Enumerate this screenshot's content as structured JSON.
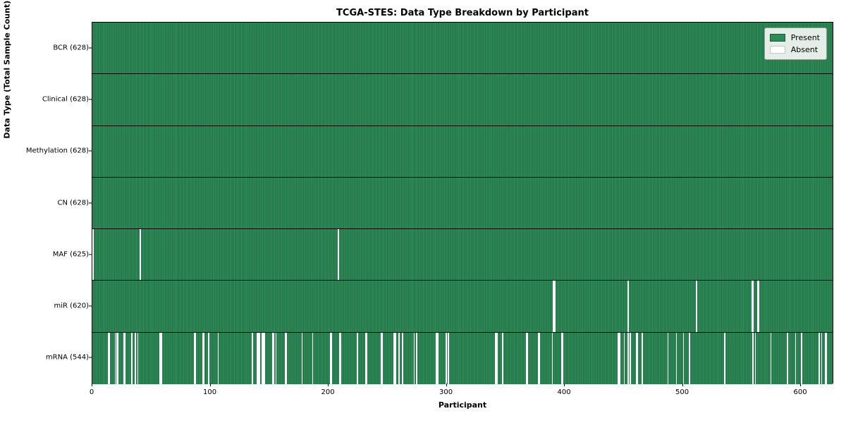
{
  "title": "TCGA-STES: Data Type Breakdown by Participant",
  "legend": {
    "present_label": "Present",
    "absent_label": "Absent"
  },
  "colors": {
    "present": "#2e8b57",
    "present_edge": "#237046",
    "absent": "#ffffff",
    "frame": "#000000"
  },
  "chart_data": {
    "type": "heatmap",
    "title": "TCGA-STES: Data Type Breakdown by Participant",
    "xlabel": "Participant",
    "ylabel": "Data Type (Total Sample Count)",
    "legend_entries": [
      "Present",
      "Absent"
    ],
    "legend_position": "upper right",
    "x_range": [
      0,
      628
    ],
    "n_participants": 628,
    "x_ticks": [
      0,
      100,
      200,
      300,
      400,
      500,
      600
    ],
    "grid": false,
    "rows": [
      {
        "label": "BCR (628)",
        "data_type": "BCR",
        "present_count": 628,
        "absent_count": 0,
        "absent_participants": []
      },
      {
        "label": "Clinical (628)",
        "data_type": "Clinical",
        "present_count": 628,
        "absent_count": 0,
        "absent_participants": []
      },
      {
        "label": "Methylation (628)",
        "data_type": "Methylation",
        "present_count": 628,
        "absent_count": 0,
        "absent_participants": []
      },
      {
        "label": "CN (628)",
        "data_type": "CN",
        "present_count": 628,
        "absent_count": 0,
        "absent_participants": []
      },
      {
        "label": "MAF (625)",
        "data_type": "MAF",
        "present_count": 625,
        "absent_count": 3,
        "absent_participants": [
          0,
          40,
          208
        ]
      },
      {
        "label": "miR (620)",
        "data_type": "miR",
        "present_count": 620,
        "absent_count": 8,
        "absent_participants": [
          390,
          391,
          453,
          511,
          558,
          559,
          563,
          564
        ]
      },
      {
        "label": "mRNA (544)",
        "data_type": "mRNA",
        "present_count": 544,
        "absent_count": 84,
        "absent_participants": [
          13,
          14,
          19,
          20,
          21,
          26,
          27,
          33,
          36,
          38,
          57,
          58,
          86,
          87,
          93,
          94,
          98,
          106,
          135,
          139,
          140,
          141,
          143,
          144,
          145,
          152,
          153,
          155,
          163,
          164,
          177,
          186,
          201,
          202,
          209,
          210,
          224,
          231,
          232,
          244,
          245,
          255,
          256,
          259,
          262,
          272,
          274,
          291,
          292,
          299,
          301,
          341,
          342,
          347,
          367,
          368,
          377,
          378,
          389,
          397,
          398,
          445,
          446,
          450,
          453,
          455,
          460,
          461,
          465,
          487,
          494,
          500,
          505,
          535,
          559,
          561,
          574,
          588,
          595,
          600,
          615,
          617,
          620,
          621
        ]
      }
    ]
  }
}
